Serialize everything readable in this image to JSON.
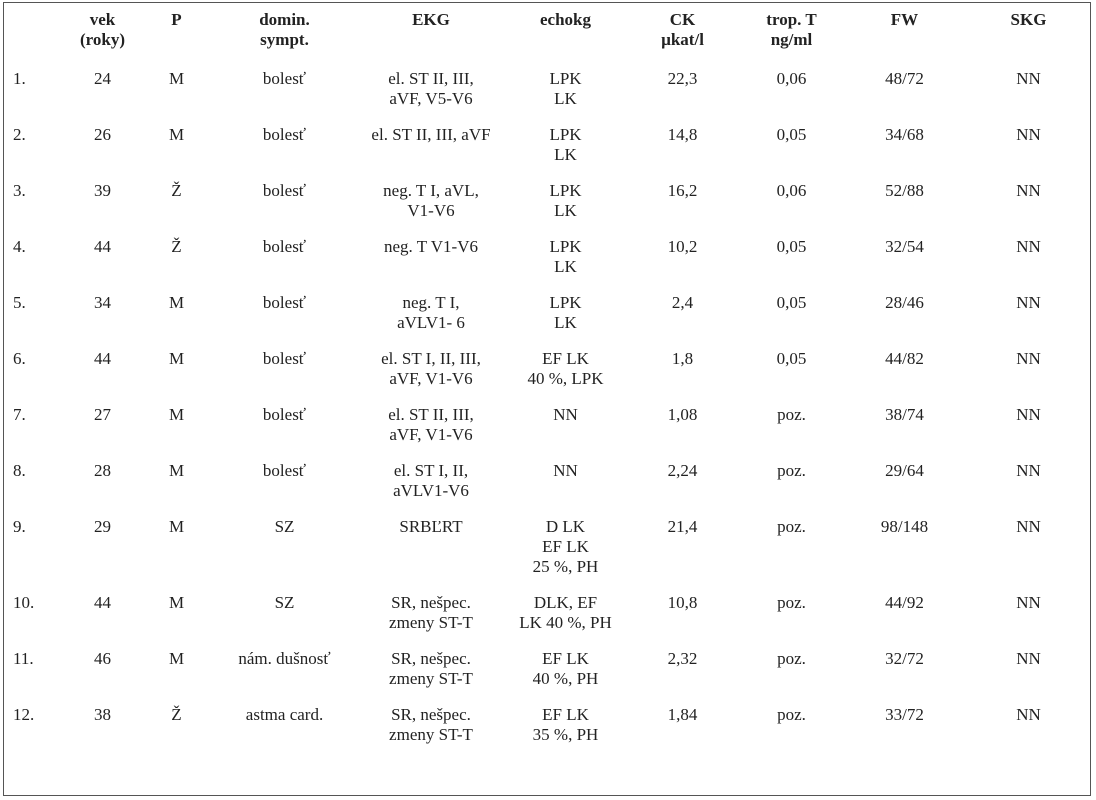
{
  "headers": {
    "num": "",
    "vek": [
      "vek",
      "(roky)"
    ],
    "p": [
      "P"
    ],
    "domin": [
      "domin.",
      "sympt."
    ],
    "ekg": [
      "EKG"
    ],
    "echokg": [
      "echokg"
    ],
    "ck": [
      "CK",
      "µkat/l"
    ],
    "trop": [
      "trop. T",
      "ng/ml"
    ],
    "fw": [
      "FW"
    ],
    "skg": [
      "SKG"
    ]
  },
  "rows": [
    {
      "num": "1.",
      "vek": "24",
      "p": "M",
      "domin": [
        "bolesť"
      ],
      "ekg": [
        "el. ST II, III,",
        "aVF, V5-V6"
      ],
      "echokg": [
        "LPK",
        "LK"
      ],
      "ck": "22,3",
      "trop": "0,06",
      "fw": "48/72",
      "skg": "NN"
    },
    {
      "num": "2.",
      "vek": "26",
      "p": "M",
      "domin": [
        "bolesť"
      ],
      "ekg": [
        "el. ST II, III, aVF"
      ],
      "echokg": [
        "LPK",
        "LK"
      ],
      "ck": "14,8",
      "trop": "0,05",
      "fw": "34/68",
      "skg": "NN"
    },
    {
      "num": "3.",
      "vek": "39",
      "p": "Ž",
      "domin": [
        "bolesť"
      ],
      "ekg": [
        "neg. T I, aVL,",
        "V1-V6"
      ],
      "echokg": [
        "LPK",
        "LK"
      ],
      "ck": "16,2",
      "trop": "0,06",
      "fw": "52/88",
      "skg": "NN"
    },
    {
      "num": "4.",
      "vek": "44",
      "p": "Ž",
      "domin": [
        "bolesť"
      ],
      "ekg": [
        "neg. T V1-V6"
      ],
      "echokg": [
        "LPK",
        "LK"
      ],
      "ck": "10,2",
      "trop": "0,05",
      "fw": "32/54",
      "skg": "NN"
    },
    {
      "num": "5.",
      "vek": "34",
      "p": "M",
      "domin": [
        "bolesť"
      ],
      "ekg": [
        "neg. T I,",
        "aVLV1- 6"
      ],
      "echokg": [
        "LPK",
        "LK"
      ],
      "ck": "2,4",
      "trop": "0,05",
      "fw": "28/46",
      "skg": "NN"
    },
    {
      "num": "6.",
      "vek": "44",
      "p": "M",
      "domin": [
        "bolesť"
      ],
      "ekg": [
        "el. ST I, II, III,",
        "aVF, V1-V6"
      ],
      "echokg": [
        "EF LK",
        "40 %, LPK"
      ],
      "ck": "1,8",
      "trop": "0,05",
      "fw": "44/82",
      "skg": "NN"
    },
    {
      "num": "7.",
      "vek": "27",
      "p": "M",
      "domin": [
        "bolesť"
      ],
      "ekg": [
        "el. ST II, III,",
        "aVF, V1-V6"
      ],
      "echokg": [
        "NN"
      ],
      "ck": "1,08",
      "trop": "poz.",
      "fw": "38/74",
      "skg": "NN"
    },
    {
      "num": "8.",
      "vek": "28",
      "p": "M",
      "domin": [
        "bolesť"
      ],
      "ekg": [
        "el. ST I, II,",
        "aVLV1-V6"
      ],
      "echokg": [
        "NN"
      ],
      "ck": "2,24",
      "trop": "poz.",
      "fw": "29/64",
      "skg": "NN"
    },
    {
      "num": "9.",
      "vek": "29",
      "p": "M",
      "domin": [
        "SZ"
      ],
      "ekg": [
        "SRBĽRT"
      ],
      "echokg": [
        "D LK",
        "EF LK",
        "25 %, PH"
      ],
      "ck": "21,4",
      "trop": "poz.",
      "fw": "98/148",
      "skg": "NN"
    },
    {
      "num": "10.",
      "vek": "44",
      "p": "M",
      "domin": [
        "SZ"
      ],
      "ekg": [
        "SR, nešpec.",
        "zmeny ST-T"
      ],
      "echokg": [
        "DLK, EF",
        "LK 40 %, PH"
      ],
      "ck": "10,8",
      "trop": "poz.",
      "fw": "44/92",
      "skg": "NN"
    },
    {
      "num": "11.",
      "vek": "46",
      "p": "M",
      "domin": [
        "nám. dušnosť"
      ],
      "ekg": [
        "SR, nešpec.",
        "zmeny ST-T"
      ],
      "echokg": [
        "EF LK",
        "40 %, PH"
      ],
      "ck": "2,32",
      "trop": "poz.",
      "fw": "32/72",
      "skg": "NN"
    },
    {
      "num": "12.",
      "vek": "38",
      "p": "Ž",
      "domin": [
        "astma card."
      ],
      "ekg": [
        "SR, nešpec.",
        "zmeny ST-T"
      ],
      "echokg": [
        "EF LK",
        "35 %, PH"
      ],
      "ck": "1,84",
      "trop": "poz.",
      "fw": "33/72",
      "skg": "NN"
    }
  ]
}
